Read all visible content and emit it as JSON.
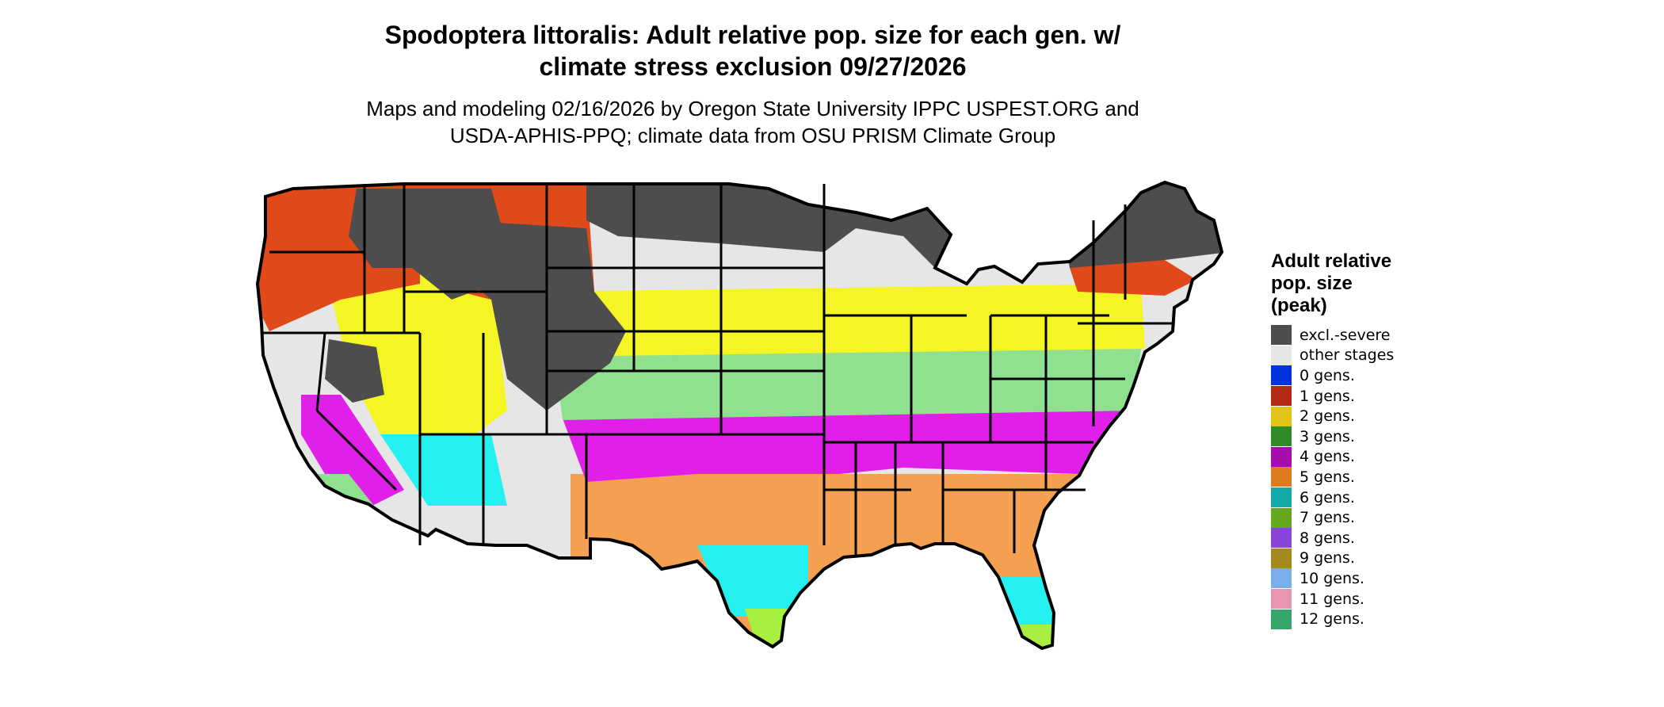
{
  "title": {
    "line1": "Spodoptera littoralis: Adult relative pop. size for each gen. w/",
    "line2": "climate stress exclusion 09/27/2026"
  },
  "subtitle": {
    "line1": "Maps and modeling 02/16/2026 by Oregon State University IPPC USPEST.ORG and",
    "line2": "USDA-APHIS-PPQ; climate data from OSU PRISM Climate Group"
  },
  "legend": {
    "title_line1": "Adult relative",
    "title_line2": "pop. size",
    "title_line3": "(peak)",
    "items": [
      {
        "label": "excl.-severe",
        "color": "#4d4d4d"
      },
      {
        "label": "other stages",
        "color": "#e6e6e6"
      },
      {
        "label": "0 gens.",
        "color": "#0033dd"
      },
      {
        "label": "1 gens.",
        "color": "#b22a16"
      },
      {
        "label": "2 gens.",
        "color": "#e0c416"
      },
      {
        "label": "3 gens.",
        "color": "#2f8a2a"
      },
      {
        "label": "4 gens.",
        "color": "#a50ead"
      },
      {
        "label": "5 gens.",
        "color": "#e07a1e"
      },
      {
        "label": "6 gens.",
        "color": "#12a9a9"
      },
      {
        "label": "7 gens.",
        "color": "#63a91b"
      },
      {
        "label": "8 gens.",
        "color": "#8a44d8"
      },
      {
        "label": "9 gens.",
        "color": "#a3891e"
      },
      {
        "label": "10 gens.",
        "color": "#7aaeea"
      },
      {
        "label": "11 gens.",
        "color": "#ea94b3"
      },
      {
        "label": "12 gens.",
        "color": "#35a76c"
      }
    ]
  },
  "map_regions": [
    {
      "region": "northern plains and upper midwest",
      "category": "excl.-severe",
      "fill": "#4d4d4d"
    },
    {
      "region": "interior west mountains",
      "category": "excl.-severe",
      "fill": "#4d4d4d"
    },
    {
      "region": "northern new england",
      "category": "excl.-severe",
      "fill": "#4d4d4d"
    },
    {
      "region": "pacific northwest and rockies",
      "category": "1 gens.",
      "fill": "#e04a1a"
    },
    {
      "region": "central corn belt",
      "category": "2 gens.",
      "fill": "#f5f525"
    },
    {
      "region": "central plains and ohio valley",
      "category": "3 gens.",
      "fill": "#8fe08f"
    },
    {
      "region": "southern plains and tennessee valley",
      "category": "4 gens.",
      "fill": "#e020e8"
    },
    {
      "region": "gulf states",
      "category": "5 gens.",
      "fill": "#f5a050"
    },
    {
      "region": "south texas and florida",
      "category": "6 gens.",
      "fill": "#25f0f0"
    },
    {
      "region": "south tip texas and florida",
      "category": "7 gens.",
      "fill": "#a8f040"
    }
  ]
}
